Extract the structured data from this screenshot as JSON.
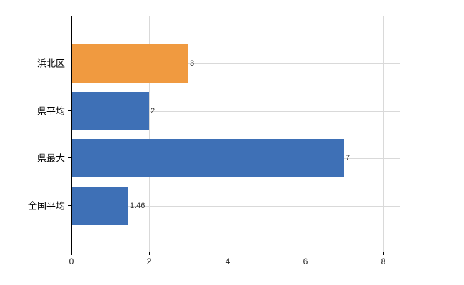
{
  "chart_data": {
    "type": "bar",
    "orientation": "horizontal",
    "title": "",
    "xlabel": "",
    "ylabel": "",
    "categories": [
      "浜北区",
      "県平均",
      "県最大",
      "全国平均"
    ],
    "values": [
      3,
      2,
      7,
      1.46
    ],
    "value_labels": [
      "3",
      "2",
      "7",
      "1.46"
    ],
    "bar_colors": [
      "#f09a40",
      "#3e70b6",
      "#3e70b6",
      "#3e70b6"
    ],
    "x_ticks": [
      0,
      2,
      4,
      6,
      8
    ],
    "xlim": [
      0,
      8.42
    ],
    "grid": true,
    "legend": false,
    "colors": {
      "orange_bar": "#f09a40",
      "blue_bar": "#3e70b6",
      "grid": "#d9d9d9",
      "axis": "#000000",
      "value_label": "#333333",
      "tick_label": "#1a1a1a",
      "background": "#ffffff"
    }
  }
}
